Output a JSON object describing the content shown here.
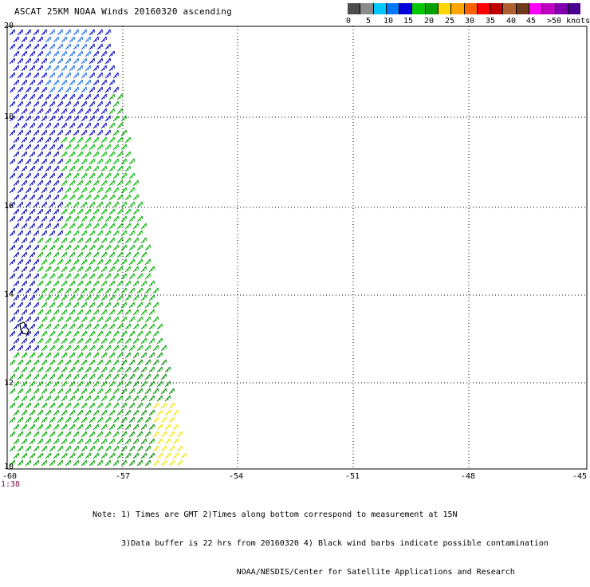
{
  "title": "ASCAT 25KM NOAA Winds 20160320 ascending",
  "legend": {
    "colors": [
      "#4d4d4d",
      "#8a8a8a",
      "#00c8ff",
      "#0078ff",
      "#0000d8",
      "#00c800",
      "#00a000",
      "#ffd700",
      "#ffa500",
      "#ff6000",
      "#ff0000",
      "#c00000",
      "#b06030",
      "#6e3a1a",
      "#ff00ff",
      "#c000c0",
      "#8000b0",
      "#4b0090"
    ],
    "labels": [
      "0",
      "5",
      "10",
      "15",
      "20",
      "25",
      "30",
      "35",
      "40",
      "45",
      ">50 knots"
    ]
  },
  "map": {
    "lon_ticks": [
      "-60",
      "-57",
      "-54",
      "-51",
      "-48",
      "-45"
    ],
    "lat_ticks": [
      "20",
      "18",
      "16",
      "14",
      "12",
      "10"
    ],
    "time_label": "1:38"
  },
  "notes": [
    "Note: 1) Times are GMT 2)Times along bottom correspond to measurement at 15N",
    "      3)Data buffer is 22 hrs from 20160320 4) Black wind barbs indicate possible contamination",
    "                              NOAA/NESDIS/Center for Satellite Applications and Research"
  ]
}
